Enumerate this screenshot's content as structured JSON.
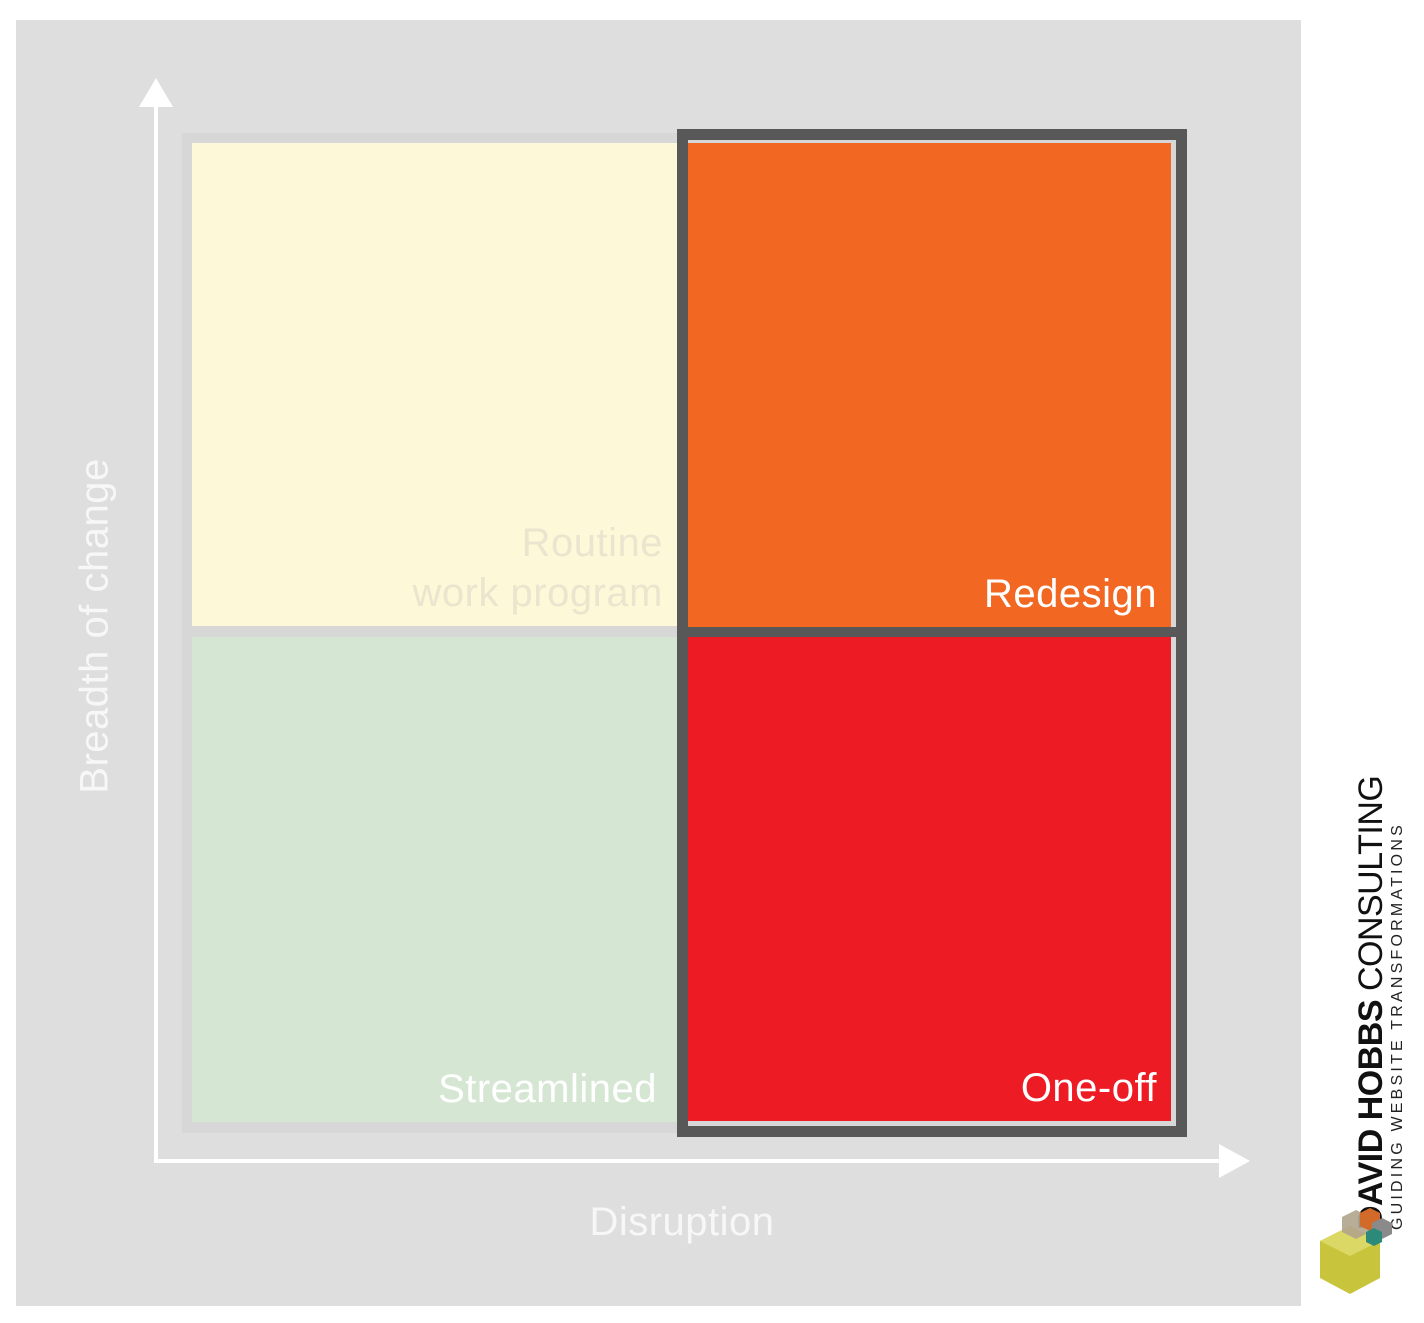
{
  "axes": {
    "x_label": "Disruption",
    "y_label": "Breadth of change"
  },
  "quadrants": {
    "top_left": {
      "label": "Routine\nwork program",
      "color": "#fdf8d7"
    },
    "bottom_left": {
      "label": "Streamlined",
      "color": "#d5e6d3"
    },
    "top_right": {
      "label": "Redesign",
      "color": "#f26722"
    },
    "bottom_right": {
      "label": "One-off",
      "color": "#ed1c24"
    }
  },
  "highlight": {
    "color": "#585858"
  },
  "branding": {
    "name_bold": "DAVID HOBBS",
    "name_regular": " CONSULTING",
    "tagline": "GUIDING WEBSITE TRANSFORMATIONS",
    "logo": "hexagon-cubes-logo"
  }
}
